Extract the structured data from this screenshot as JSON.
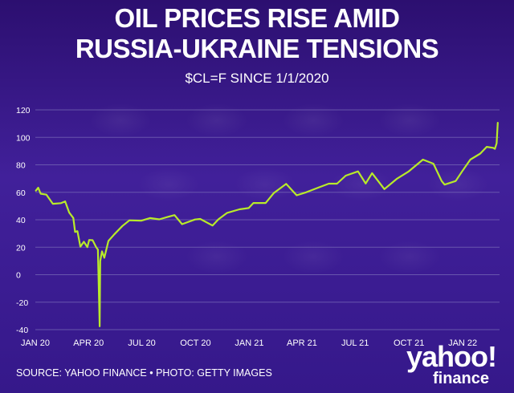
{
  "title_line1": "OIL PRICES RISE AMID",
  "title_line2": "RUSSIA-UKRAINE TENSIONS",
  "subtitle": "$CL=F SINCE 1/1/2020",
  "source": "SOURCE: YAHOO FINANCE • PHOTO: GETTY IMAGES",
  "logo": {
    "word1": "yahoo!",
    "word2": "finance"
  },
  "colors": {
    "line": "#b8ea2a",
    "grid": "#7464b4",
    "text": "#ffffff",
    "background": "#3a1a86"
  },
  "chart_data": {
    "type": "line",
    "title": "OIL PRICES RISE AMID RUSSIA-UKRAINE TENSIONS",
    "subtitle": "$CL=F SINCE 1/1/2020",
    "xlabel": "",
    "ylabel": "",
    "ylim": [
      -40,
      120
    ],
    "yticks": [
      -40,
      -20,
      0,
      20,
      40,
      60,
      80,
      100,
      120
    ],
    "xticks": [
      "JAN 20",
      "APR 20",
      "JUL 20",
      "OCT 20",
      "JAN 21",
      "APR 21",
      "JUL 21",
      "OCT 21",
      "JAN 22"
    ],
    "grid": true,
    "series": [
      {
        "values": [
          [
            "2020-01-02",
            61.2
          ],
          [
            "2020-01-06",
            63.3
          ],
          [
            "2020-01-10",
            59.0
          ],
          [
            "2020-01-20",
            58.3
          ],
          [
            "2020-01-31",
            51.6
          ],
          [
            "2020-02-14",
            52.1
          ],
          [
            "2020-02-21",
            53.4
          ],
          [
            "2020-02-28",
            45.2
          ],
          [
            "2020-03-06",
            41.3
          ],
          [
            "2020-03-09",
            31.1
          ],
          [
            "2020-03-13",
            31.7
          ],
          [
            "2020-03-18",
            20.4
          ],
          [
            "2020-03-24",
            24.0
          ],
          [
            "2020-03-30",
            20.1
          ],
          [
            "2020-04-02",
            25.3
          ],
          [
            "2020-04-08",
            25.1
          ],
          [
            "2020-04-14",
            20.1
          ],
          [
            "2020-04-17",
            18.3
          ],
          [
            "2020-04-20",
            -37.6
          ],
          [
            "2020-04-21",
            10.0
          ],
          [
            "2020-04-24",
            17.0
          ],
          [
            "2020-04-28",
            12.3
          ],
          [
            "2020-05-05",
            24.6
          ],
          [
            "2020-05-15",
            29.4
          ],
          [
            "2020-05-29",
            35.5
          ],
          [
            "2020-06-10",
            39.6
          ],
          [
            "2020-06-30",
            39.3
          ],
          [
            "2020-07-15",
            41.2
          ],
          [
            "2020-07-31",
            40.3
          ],
          [
            "2020-08-14",
            42.0
          ],
          [
            "2020-08-26",
            43.4
          ],
          [
            "2020-09-08",
            36.8
          ],
          [
            "2020-09-30",
            40.2
          ],
          [
            "2020-10-09",
            40.6
          ],
          [
            "2020-10-30",
            35.8
          ],
          [
            "2020-11-09",
            40.3
          ],
          [
            "2020-11-24",
            45.0
          ],
          [
            "2020-12-15",
            47.6
          ],
          [
            "2020-12-31",
            48.5
          ],
          [
            "2021-01-08",
            52.2
          ],
          [
            "2021-01-29",
            52.2
          ],
          [
            "2021-02-12",
            59.5
          ],
          [
            "2021-03-05",
            66.1
          ],
          [
            "2021-03-23",
            57.8
          ],
          [
            "2021-04-07",
            59.8
          ],
          [
            "2021-04-30",
            63.6
          ],
          [
            "2021-05-17",
            66.3
          ],
          [
            "2021-05-31",
            66.3
          ],
          [
            "2021-06-15",
            72.1
          ],
          [
            "2021-07-06",
            75.2
          ],
          [
            "2021-07-19",
            66.4
          ],
          [
            "2021-07-30",
            73.9
          ],
          [
            "2021-08-20",
            62.3
          ],
          [
            "2021-09-10",
            69.7
          ],
          [
            "2021-09-30",
            75.0
          ],
          [
            "2021-10-25",
            83.8
          ],
          [
            "2021-11-12",
            80.8
          ],
          [
            "2021-11-26",
            68.2
          ],
          [
            "2021-12-01",
            65.6
          ],
          [
            "2021-12-20",
            68.2
          ],
          [
            "2021-12-31",
            75.2
          ],
          [
            "2022-01-14",
            83.8
          ],
          [
            "2022-01-31",
            88.2
          ],
          [
            "2022-02-11",
            93.1
          ],
          [
            "2022-02-22",
            92.4
          ],
          [
            "2022-02-25",
            91.6
          ],
          [
            "2022-02-28",
            95.7
          ],
          [
            "2022-03-01",
            103.4
          ],
          [
            "2022-03-02",
            110.6
          ]
        ]
      }
    ]
  }
}
